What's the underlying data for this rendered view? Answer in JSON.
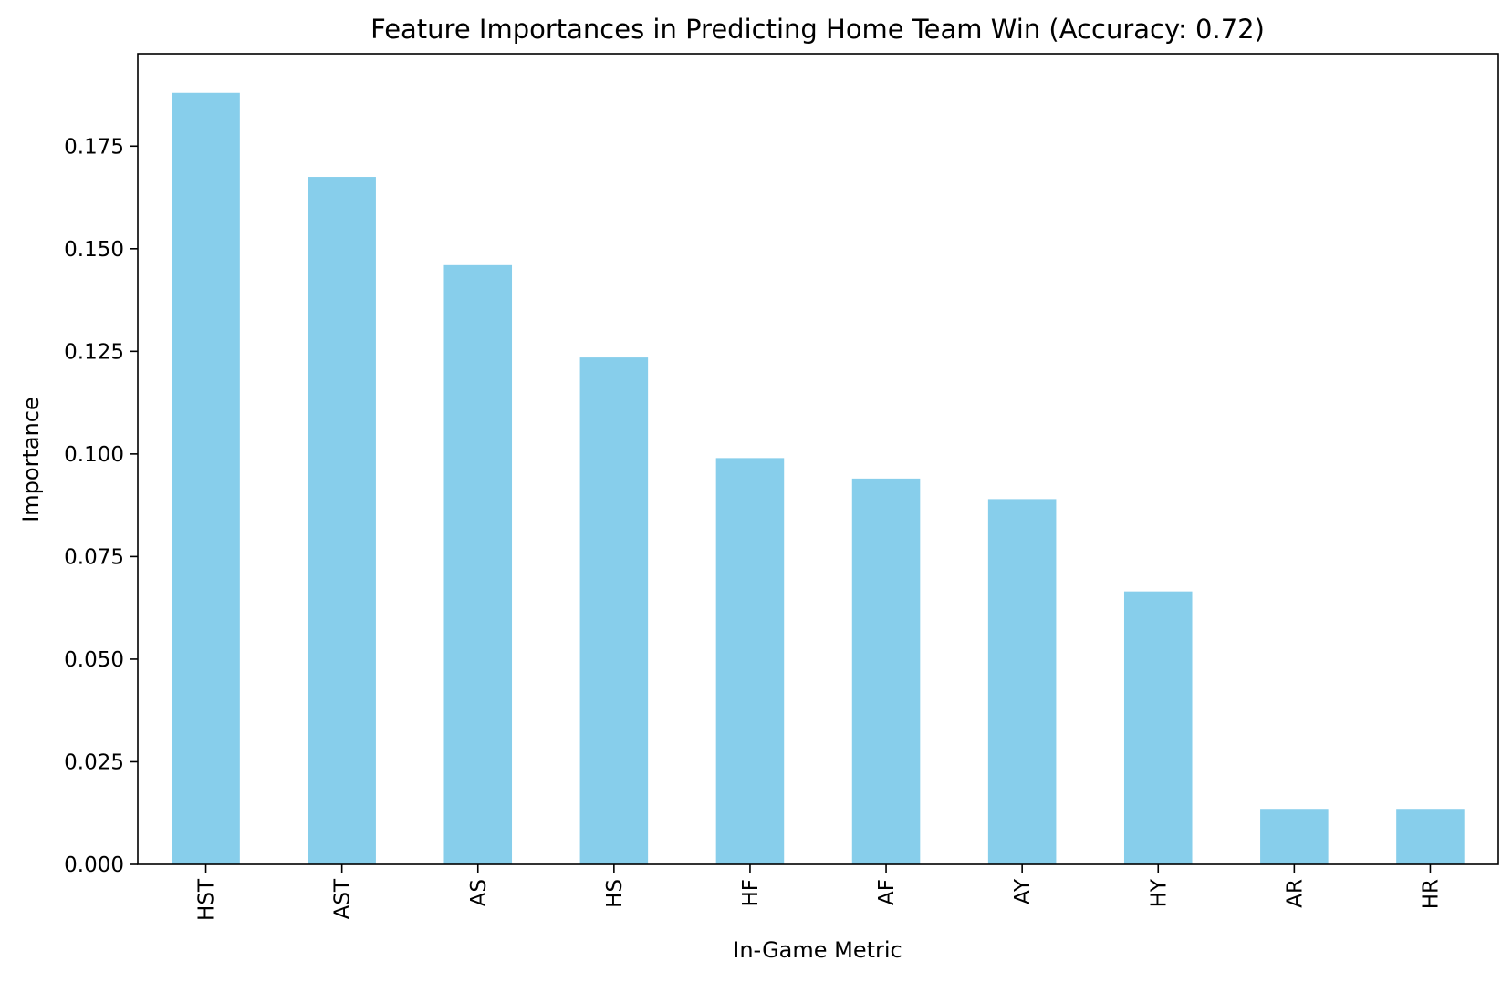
{
  "chart_data": {
    "type": "bar",
    "title": "Feature Importances in Predicting Home Team Win (Accuracy: 0.72)",
    "xlabel": "In-Game Metric",
    "ylabel": "Importance",
    "categories": [
      "HST",
      "AST",
      "AS",
      "HS",
      "HF",
      "AF",
      "AY",
      "HY",
      "AR",
      "HR"
    ],
    "values": [
      0.188,
      0.1675,
      0.146,
      0.1235,
      0.099,
      0.094,
      0.089,
      0.0665,
      0.0135,
      0.0135
    ],
    "ylim": [
      0,
      0.1975
    ],
    "yticks": [
      0.0,
      0.025,
      0.05,
      0.075,
      0.1,
      0.125,
      0.15,
      0.175
    ],
    "ytick_labels": [
      "0.000",
      "0.025",
      "0.050",
      "0.075",
      "0.100",
      "0.125",
      "0.150",
      "0.175"
    ],
    "grid": false,
    "legend": "none",
    "bar_color": "#87CEEB"
  }
}
